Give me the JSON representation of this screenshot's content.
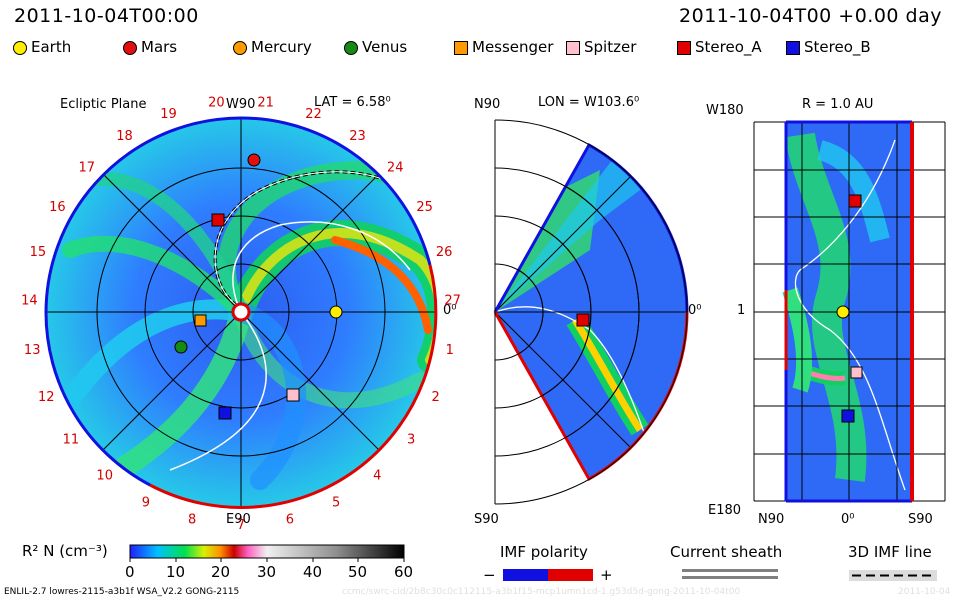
{
  "header": {
    "date_left": "2011-10-04T00:00",
    "date_right": "2011-10-04T00 +0.00 day"
  },
  "legend": [
    {
      "label": "Earth",
      "color": "#ffee00",
      "shape": "circle"
    },
    {
      "label": "Mars",
      "color": "#e01010",
      "shape": "circle"
    },
    {
      "label": "Mercury",
      "color": "#ff9900",
      "shape": "circle"
    },
    {
      "label": "Venus",
      "color": "#158a15",
      "shape": "circle"
    },
    {
      "label": "Messenger",
      "color": "#ff9900",
      "shape": "square"
    },
    {
      "label": "Spitzer",
      "color": "#ffc0cc",
      "shape": "square"
    },
    {
      "label": "Stereo_A",
      "color": "#e00000",
      "shape": "square"
    },
    {
      "label": "Stereo_B",
      "color": "#1010e0",
      "shape": "square"
    }
  ],
  "panels": {
    "ecliptic": {
      "title": "Ecliptic Plane",
      "top_label": "W90",
      "bottom_label": "E90",
      "right_label": "0⁰",
      "lat": "LAT = 6.58⁰",
      "carrington_numbers": [
        "1",
        "2",
        "3",
        "4",
        "5",
        "6",
        "7",
        "8",
        "9",
        "10",
        "11",
        "12",
        "13",
        "14",
        "15",
        "16",
        "17",
        "18",
        "19",
        "20",
        "21",
        "22",
        "23",
        "24",
        "25",
        "26",
        "27"
      ]
    },
    "meridional": {
      "title": "LON = W103.6⁰",
      "top_label": "N90",
      "bottom_label": "S90",
      "right_label": "0⁰"
    },
    "sphere": {
      "title": "R = 1.0 AU",
      "top_left": "W180",
      "mid_left": "1",
      "bottom_left": "E180",
      "bottom_labels": [
        "N90",
        "0⁰",
        "S90"
      ]
    }
  },
  "colorbar": {
    "label": "R² N (cm⁻³)",
    "ticks": [
      "0",
      "10",
      "20",
      "30",
      "40",
      "50",
      "60"
    ],
    "range": [
      0,
      60
    ]
  },
  "imf": {
    "polarity_label": "IMF polarity",
    "minus": "−",
    "plus": "+",
    "sheath_label": "Current sheath",
    "line_label": "3D IMF line"
  },
  "footer": {
    "model": "ENLIL-2.7 lowres-2115-a3b1f WSA_V2.2 GONG-2115",
    "watermark": "ccmc/swrc-cid/2b8c30c0c112115-a3b1f15-mcp1umn1cd-1.g53d5d-gong-2011-10-04t00",
    "watermark_right": "2011-10-04"
  }
}
